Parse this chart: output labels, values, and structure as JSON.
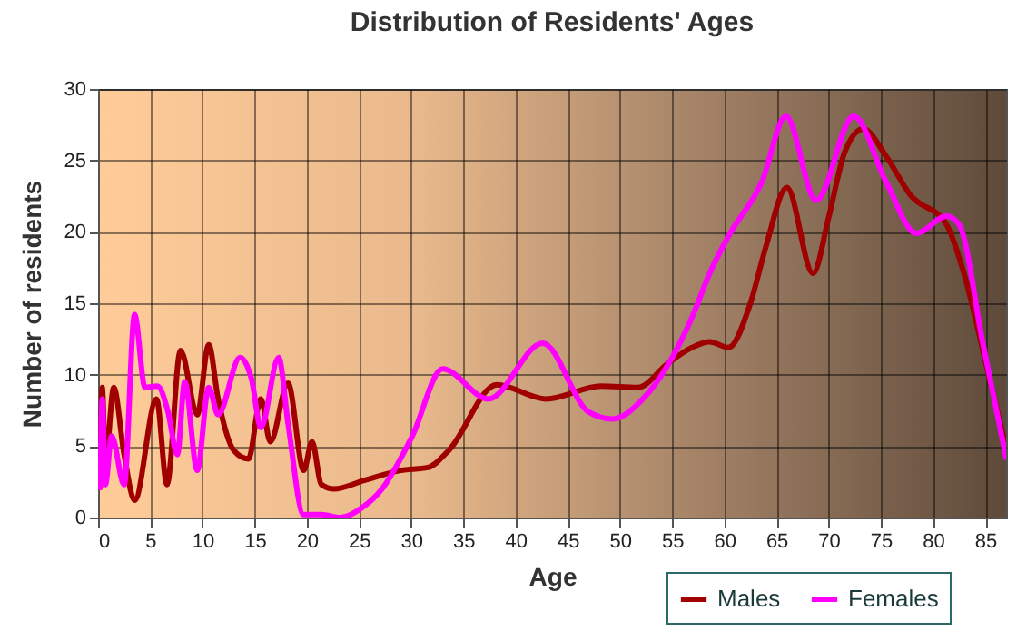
{
  "chart_data": {
    "type": "line",
    "title": "Distribution of Residents' Ages",
    "xlabel": "Age",
    "ylabel": "Number of residents",
    "xlim": [
      0,
      87
    ],
    "xticks": [
      0,
      5,
      10,
      15,
      20,
      25,
      30,
      35,
      40,
      45,
      50,
      55,
      60,
      65,
      70,
      75,
      80,
      85
    ],
    "ylim": [
      0,
      30
    ],
    "yticks": [
      0,
      5,
      10,
      15,
      20,
      25,
      30
    ],
    "grid": true,
    "legend": "bottom",
    "marker": "none",
    "line_style": "solid",
    "series": [
      {
        "name": "Males",
        "color": "#a00000",
        "x": [
          0.2,
          0.4,
          0.7,
          1.5,
          2.5,
          3.5,
          5.6,
          6.6,
          7.9,
          9.5,
          10.6,
          11.5,
          13,
          14.4,
          15.6,
          16.5,
          18.2,
          19.7,
          20.5,
          21.4,
          22.6,
          25.5,
          29,
          31.6,
          33.6,
          38.2,
          42.9,
          48.2,
          51.7,
          54.6,
          56.9,
          58.6,
          60.4,
          62.5,
          64,
          66,
          68.5,
          70,
          71.5,
          73.3,
          75.5,
          77.8,
          81.3,
          83,
          85,
          87
        ],
        "values": [
          2.1,
          9.1,
          3.8,
          9.1,
          4.4,
          1.2,
          8.3,
          2.3,
          11.7,
          7.2,
          12.1,
          8.3,
          4.7,
          4.1,
          8.3,
          5.3,
          9.4,
          3.3,
          5.3,
          2.3,
          2.0,
          2.6,
          3.3,
          3.5,
          4.7,
          9.3,
          8.3,
          9.2,
          9.1,
          10.8,
          11.9,
          12.3,
          11.9,
          15,
          19,
          23.1,
          17.1,
          21,
          25.5,
          27.2,
          25.3,
          22.6,
          20.5,
          17,
          11,
          4.9
        ]
      },
      {
        "name": "Females",
        "color": "#ff00ff",
        "x": [
          0.2,
          0.4,
          0.7,
          1.3,
          2.5,
          3.5,
          4.5,
          5.7,
          6.7,
          7.6,
          8.3,
          9.5,
          10.6,
          11.5,
          13.6,
          14.7,
          15.6,
          17.3,
          18.2,
          19.7,
          21.4,
          23.2,
          25.5,
          27.2,
          30.1,
          33,
          37.4,
          42.6,
          47,
          49.3,
          52.2,
          56.9,
          58.6,
          60.4,
          63.6,
          65.9,
          68.8,
          72.4,
          75.5,
          78.4,
          81.3,
          82.5,
          84.8,
          87
        ],
        "values": [
          2.1,
          8.3,
          2.3,
          5.7,
          2.3,
          14.2,
          9.1,
          9.2,
          7.4,
          4.4,
          9.5,
          3.3,
          9.1,
          7.2,
          11.2,
          9.7,
          6.3,
          11.2,
          6.6,
          0.2,
          0.2,
          0,
          0.8,
          2.0,
          5.7,
          10.4,
          8.3,
          12.2,
          7.4,
          6.9,
          8.3,
          14,
          17.1,
          19.7,
          23.5,
          28.1,
          22.2,
          28.1,
          23.5,
          19.9,
          21.1,
          20.5,
          12.1,
          4.2
        ]
      }
    ]
  }
}
